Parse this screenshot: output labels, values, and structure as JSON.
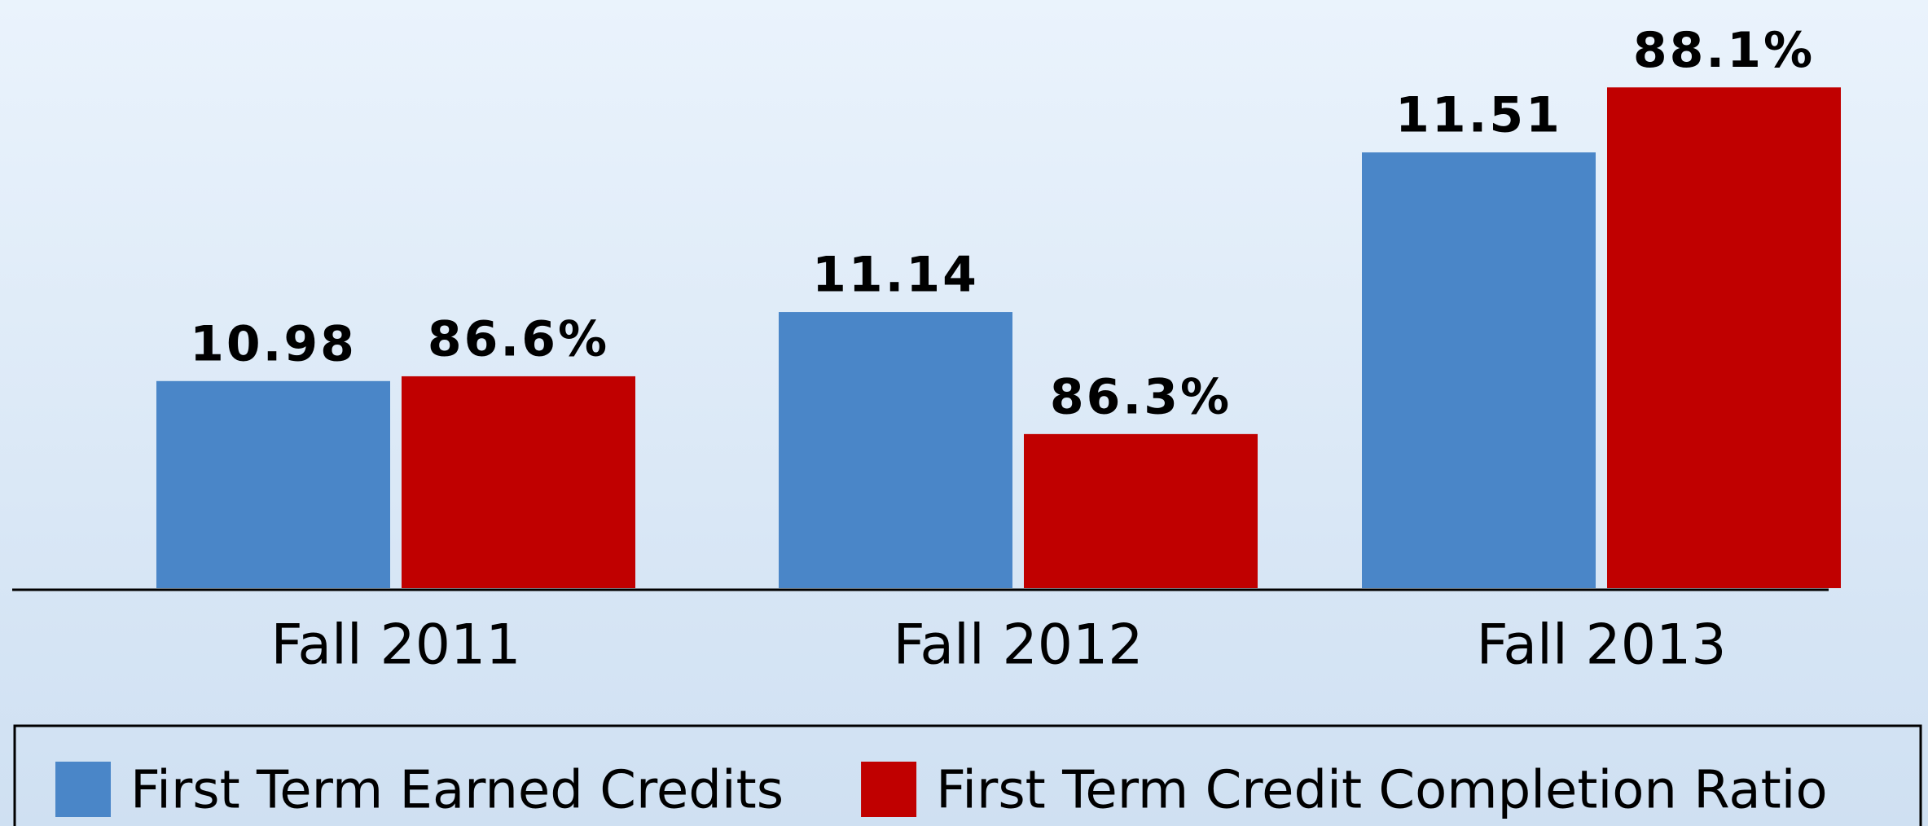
{
  "chart_data": {
    "type": "bar",
    "categories": [
      "Fall 2011",
      "Fall 2012",
      "Fall 2013"
    ],
    "series": [
      {
        "name": "First Term Earned Credits",
        "color": "#4a86c8",
        "values": [
          10.98,
          11.14,
          11.51
        ]
      },
      {
        "name": "First Term Credit Completion Ratio",
        "color": "#c00000",
        "axis": "y2",
        "values": [
          86.6,
          86.3,
          88.1
        ],
        "value_labels": [
          "86.6%",
          "86.3%",
          "88.1%"
        ]
      }
    ],
    "ylim": [
      10.5,
      11.75
    ],
    "y2lim": [
      85.5,
      88.3
    ],
    "legend": "bottom"
  }
}
